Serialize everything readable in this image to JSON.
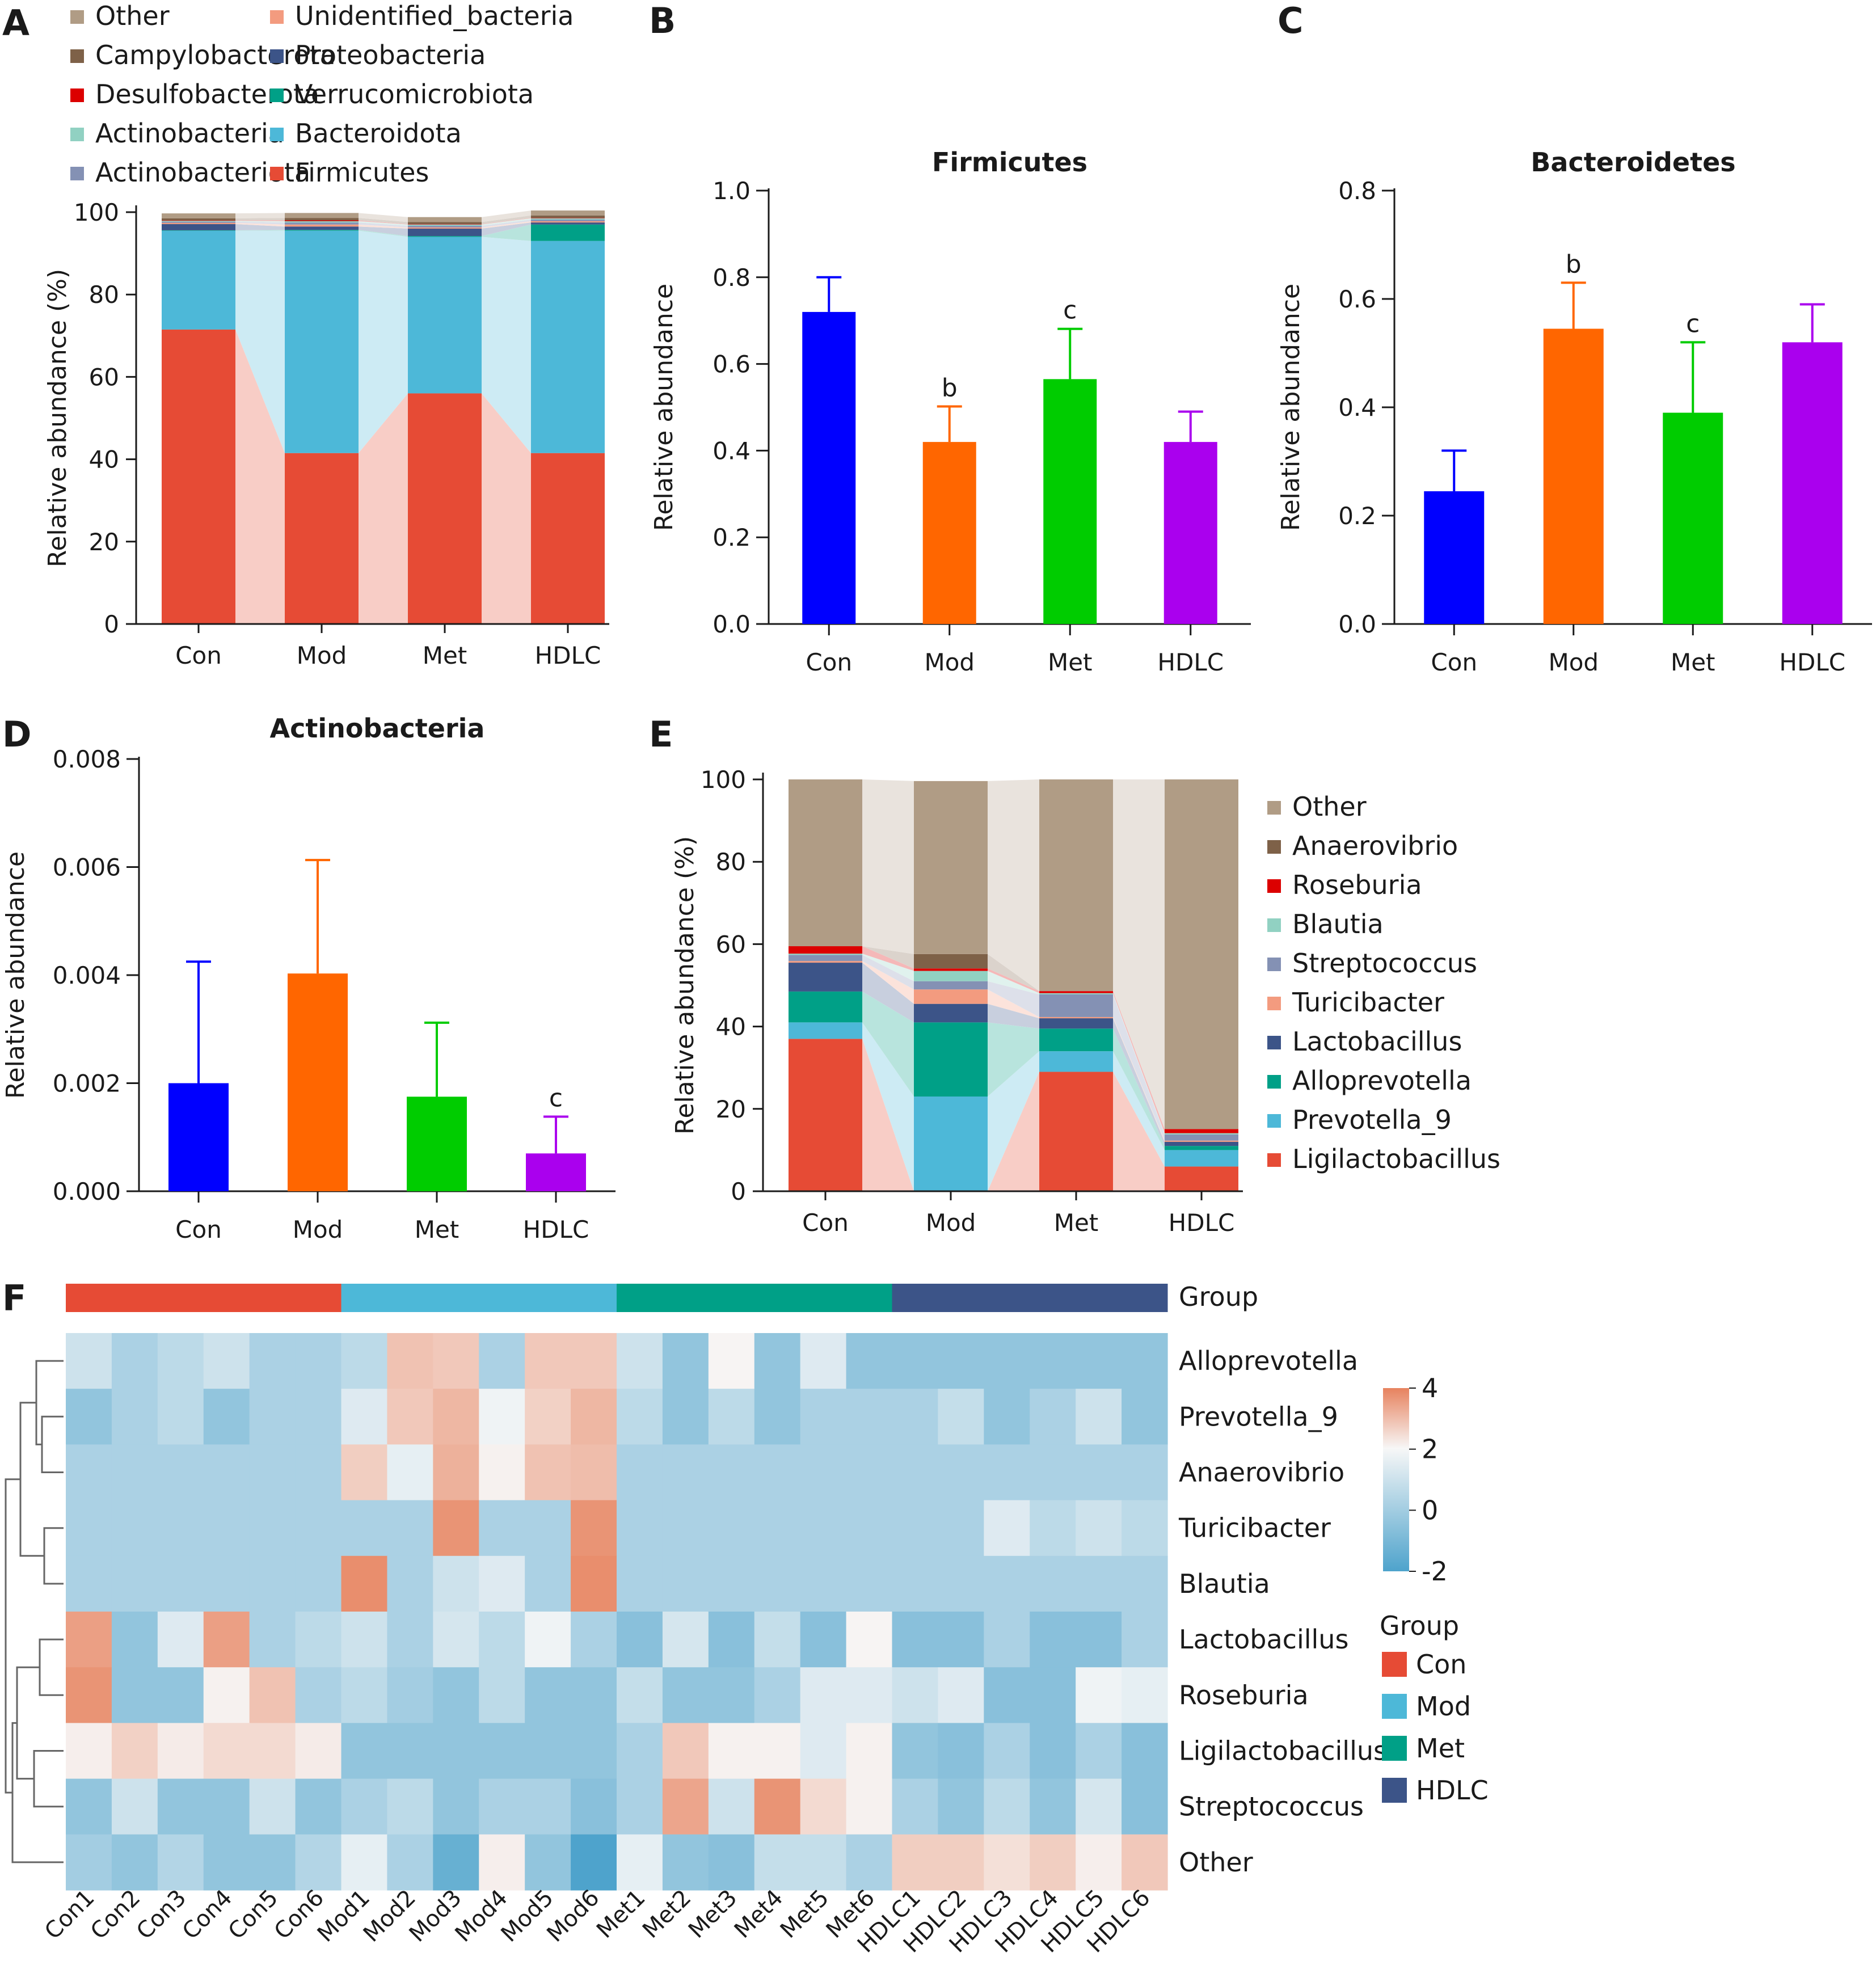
{
  "panels": {
    "A": "A",
    "B": "B",
    "C": "C",
    "D": "D",
    "E": "E",
    "F": "F"
  },
  "chart_data": [
    {
      "id": "A",
      "type": "bar",
      "stacked": true,
      "categories": [
        "Con",
        "Mod",
        "Met",
        "HDLC"
      ],
      "ylabel": "Relative abundance (%)",
      "ylim": [
        0,
        100
      ],
      "yticks": [
        0,
        20,
        40,
        60,
        80,
        100
      ],
      "legend_layout": [
        "Other",
        "Campylobacterota",
        "Desulfobacterota",
        "Actinobacteria",
        "Actinobacteriota",
        "Unidentified_bacteria",
        "Proteobacteria",
        "Verrucomicrobiota",
        "Bacteroidota",
        "Firmicutes"
      ],
      "series": [
        {
          "name": "Firmicutes",
          "color": "#e64b35",
          "values": [
            71.5,
            41.5,
            56,
            41.5
          ]
        },
        {
          "name": "Bacteroidota",
          "color": "#4db8d8",
          "values": [
            24,
            54,
            38,
            51.5
          ]
        },
        {
          "name": "Verrucomicrobiota",
          "color": "#00a087",
          "values": [
            0.1,
            0.2,
            0.2,
            4
          ]
        },
        {
          "name": "Proteobacteria",
          "color": "#3c5488",
          "values": [
            1.5,
            0.8,
            1.8,
            0.5
          ]
        },
        {
          "name": "Unidentified_bacteria",
          "color": "#f39b7f",
          "values": [
            0.3,
            0.5,
            0.3,
            0.3
          ]
        },
        {
          "name": "Actinobacteriota",
          "color": "#8491b4",
          "values": [
            0.3,
            0.5,
            0.4,
            0.4
          ]
        },
        {
          "name": "Actinobacteria",
          "color": "#91d1c2",
          "values": [
            0.2,
            0.3,
            0.3,
            0.3
          ]
        },
        {
          "name": "Desulfobacterota",
          "color": "#dc0000",
          "values": [
            0.1,
            0.2,
            0.1,
            0.1
          ]
        },
        {
          "name": "Campylobacterota",
          "color": "#7e6148",
          "values": [
            0.5,
            0.6,
            0.5,
            0.6
          ]
        },
        {
          "name": "Other",
          "color": "#b09c85",
          "values": [
            1.2,
            1.2,
            1.2,
            1.2
          ]
        }
      ]
    },
    {
      "id": "B",
      "type": "bar",
      "title": "Firmicutes",
      "categories": [
        "Con",
        "Mod",
        "Met",
        "HDLC"
      ],
      "ylabel": "Relative abundance",
      "ylim": [
        0,
        1.0
      ],
      "yticks": [
        "0.0",
        "0.2",
        "0.4",
        "0.6",
        "0.8",
        "1.0"
      ],
      "values": [
        0.72,
        0.42,
        0.565,
        0.42
      ],
      "errors": [
        0.08,
        0.082,
        0.116,
        0.07
      ],
      "colors": [
        "#0000ff",
        "#ff6600",
        "#00cc00",
        "#aa00ee"
      ],
      "significance": [
        "",
        "b",
        "c",
        ""
      ]
    },
    {
      "id": "C",
      "type": "bar",
      "title": "Bacteroidetes",
      "categories": [
        "Con",
        "Mod",
        "Met",
        "HDLC"
      ],
      "ylabel": "Relative abundance",
      "ylim": [
        0,
        0.8
      ],
      "yticks": [
        "0.0",
        "0.2",
        "0.4",
        "0.6",
        "0.8"
      ],
      "values": [
        0.245,
        0.545,
        0.39,
        0.52
      ],
      "errors": [
        0.075,
        0.085,
        0.13,
        0.07
      ],
      "colors": [
        "#0000ff",
        "#ff6600",
        "#00cc00",
        "#aa00ee"
      ],
      "significance": [
        "",
        "b",
        "c",
        ""
      ]
    },
    {
      "id": "D",
      "type": "bar",
      "title": "Actinobacteria",
      "categories": [
        "Con",
        "Mod",
        "Met",
        "HDLC"
      ],
      "ylabel": "Relative abundance",
      "ylim": [
        0,
        0.008
      ],
      "yticks": [
        "0.000",
        "0.002",
        "0.004",
        "0.006",
        "0.008"
      ],
      "values": [
        0.002,
        0.00403,
        0.00175,
        0.0007
      ],
      "errors": [
        0.00225,
        0.0021,
        0.00137,
        0.00068
      ],
      "colors": [
        "#0000ff",
        "#ff6600",
        "#00cc00",
        "#aa00ee"
      ],
      "significance": [
        "",
        "",
        "",
        "c"
      ]
    },
    {
      "id": "E",
      "type": "bar",
      "stacked": true,
      "categories": [
        "Con",
        "Mod",
        "Met",
        "HDLC"
      ],
      "ylabel": "Relative abundance (%)",
      "ylim": [
        0,
        100
      ],
      "yticks": [
        0,
        20,
        40,
        60,
        80,
        100
      ],
      "legend_layout": [
        "Other",
        "Anaerovibrio",
        "Roseburia",
        "Blautia",
        "Streptococcus",
        "Turicibacter",
        "Lactobacillus",
        "Alloprevotella",
        "Prevotella_9",
        "Ligilactobacillus"
      ],
      "series": [
        {
          "name": "Ligilactobacillus",
          "color": "#e64b35",
          "values": [
            37,
            0,
            29,
            6
          ]
        },
        {
          "name": "Prevotella_9",
          "color": "#4db8d8",
          "values": [
            4,
            23,
            5,
            4
          ]
        },
        {
          "name": "Alloprevotella",
          "color": "#00a087",
          "values": [
            7.5,
            18,
            5.5,
            1
          ]
        },
        {
          "name": "Lactobacillus",
          "color": "#3c5488",
          "values": [
            7,
            4.5,
            2.5,
            1
          ]
        },
        {
          "name": "Turicibacter",
          "color": "#f39b7f",
          "values": [
            0.4,
            3.5,
            0.3,
            0.3
          ]
        },
        {
          "name": "Streptococcus",
          "color": "#8491b4",
          "values": [
            1.5,
            2,
            5.5,
            1.5
          ]
        },
        {
          "name": "Blautia",
          "color": "#91d1c2",
          "values": [
            0.3,
            2.5,
            0.3,
            0.3
          ]
        },
        {
          "name": "Roseburia",
          "color": "#dc0000",
          "values": [
            1.8,
            0.6,
            0.5,
            1
          ]
        },
        {
          "name": "Anaerovibrio",
          "color": "#7e6148",
          "values": [
            0,
            3.5,
            0,
            0
          ]
        },
        {
          "name": "Other",
          "color": "#b09c85",
          "values": [
            40.5,
            42,
            51.4,
            84.9
          ]
        }
      ]
    },
    {
      "id": "F",
      "type": "heatmap",
      "columns": [
        "Con1",
        "Con2",
        "Con3",
        "Con4",
        "Con5",
        "Con6",
        "Mod1",
        "Mod2",
        "Mod3",
        "Mod4",
        "Mod5",
        "Mod6",
        "Met1",
        "Met2",
        "Met3",
        "Met4",
        "Met5",
        "Met6",
        "HDLC1",
        "HDLC2",
        "HDLC3",
        "HDLC4",
        "HDLC5",
        "HDLC6"
      ],
      "rows": [
        "Alloprevotella",
        "Prevotella_9",
        "Anaerovibrio",
        "Turicibacter",
        "Blautia",
        "Lactobacillus",
        "Roseburia",
        "Ligilactobacillus",
        "Streptococcus",
        "Other"
      ],
      "values": [
        [
          -0.5,
          -0.9,
          -0.7,
          -0.5,
          -0.9,
          -0.9,
          -0.7,
          1.8,
          1.6,
          -0.9,
          1.6,
          1.6,
          -0.5,
          -1.2,
          0.1,
          -1.2,
          -0.3,
          -1.2,
          -1.2,
          -1.2,
          -1.2,
          -1.2,
          -1.2,
          -1.2
        ],
        [
          -1.2,
          -0.9,
          -0.7,
          -1.2,
          -0.9,
          -0.9,
          -0.3,
          1.6,
          2.2,
          -0.1,
          1.3,
          2.2,
          -0.7,
          -1.2,
          -0.7,
          -1.2,
          -0.9,
          -0.9,
          -0.9,
          -0.6,
          -1.2,
          -0.9,
          -0.5,
          -1.2
        ],
        [
          -0.9,
          -0.9,
          -0.9,
          -0.9,
          -0.9,
          -0.9,
          1.4,
          -0.2,
          2.4,
          0.2,
          1.8,
          2.0,
          -0.9,
          -0.9,
          -0.9,
          -0.9,
          -0.9,
          -0.9,
          -0.9,
          -0.9,
          -0.9,
          -0.9,
          -0.9,
          -0.9
        ],
        [
          -0.9,
          -0.9,
          -0.9,
          -0.9,
          -0.9,
          -0.9,
          -0.9,
          -0.9,
          3.4,
          -0.9,
          -0.9,
          3.4,
          -0.9,
          -0.9,
          -0.9,
          -0.9,
          -0.9,
          -0.9,
          -0.9,
          -0.9,
          -0.3,
          -0.7,
          -0.5,
          -0.7
        ],
        [
          -0.9,
          -0.9,
          -0.9,
          -0.9,
          -0.9,
          -0.9,
          3.6,
          -0.9,
          -0.5,
          -0.3,
          -0.9,
          3.6,
          -0.9,
          -0.9,
          -0.9,
          -0.9,
          -0.9,
          -0.9,
          -0.9,
          -0.9,
          -0.9,
          -0.9,
          -0.9,
          -0.9
        ],
        [
          3.0,
          -1.2,
          -0.3,
          3.0,
          -0.9,
          -0.7,
          -0.5,
          -0.9,
          -0.4,
          -0.7,
          -0.1,
          -0.9,
          -1.3,
          -0.4,
          -1.3,
          -0.6,
          -1.3,
          0.1,
          -1.3,
          -1.3,
          -0.9,
          -1.3,
          -1.3,
          -0.9
        ],
        [
          3.4,
          -1.2,
          -1.2,
          0.2,
          1.8,
          -0.9,
          -0.7,
          -1.0,
          -1.2,
          -0.7,
          -1.2,
          -1.2,
          -0.6,
          -1.2,
          -1.2,
          -0.9,
          -0.3,
          -0.3,
          -0.5,
          -0.3,
          -1.3,
          -1.3,
          -0.1,
          -0.2
        ],
        [
          0.3,
          1.3,
          0.4,
          1.0,
          1.0,
          0.4,
          -1.2,
          -1.2,
          -1.2,
          -1.2,
          -1.2,
          -1.2,
          -0.9,
          1.6,
          0.2,
          0.2,
          -0.3,
          0.2,
          -1.2,
          -1.3,
          -0.9,
          -1.3,
          -0.9,
          -1.3
        ],
        [
          -1.2,
          -0.5,
          -1.2,
          -1.2,
          -0.5,
          -1.2,
          -0.9,
          -0.7,
          -1.2,
          -0.9,
          -0.9,
          -1.3,
          -0.9,
          2.8,
          -0.5,
          3.4,
          1.0,
          0.2,
          -0.9,
          -1.2,
          -0.7,
          -1.2,
          -0.4,
          -1.3
        ],
        [
          -1.0,
          -1.2,
          -0.8,
          -1.2,
          -1.2,
          -0.8,
          -0.2,
          -0.9,
          -1.7,
          0.3,
          -1.2,
          -2.0,
          -0.2,
          -1.2,
          -1.3,
          -0.6,
          -0.6,
          -0.9,
          1.4,
          1.4,
          0.8,
          1.4,
          0.3,
          1.6
        ]
      ],
      "groups": [
        {
          "name": "Con",
          "color": "#e64b35"
        },
        {
          "name": "Mod",
          "color": "#4db8d8"
        },
        {
          "name": "Met",
          "color": "#00a087"
        },
        {
          "name": "HDLC",
          "color": "#3c5488"
        }
      ],
      "group_label": "Group",
      "colorbar_ticks": [
        "4",
        "2",
        "0",
        "-2"
      ],
      "colorbar_range": [
        -2,
        4
      ],
      "colors": {
        "low": "#4ea3cc",
        "mid": "#f7f7f7",
        "high": "#e7825e"
      }
    }
  ]
}
